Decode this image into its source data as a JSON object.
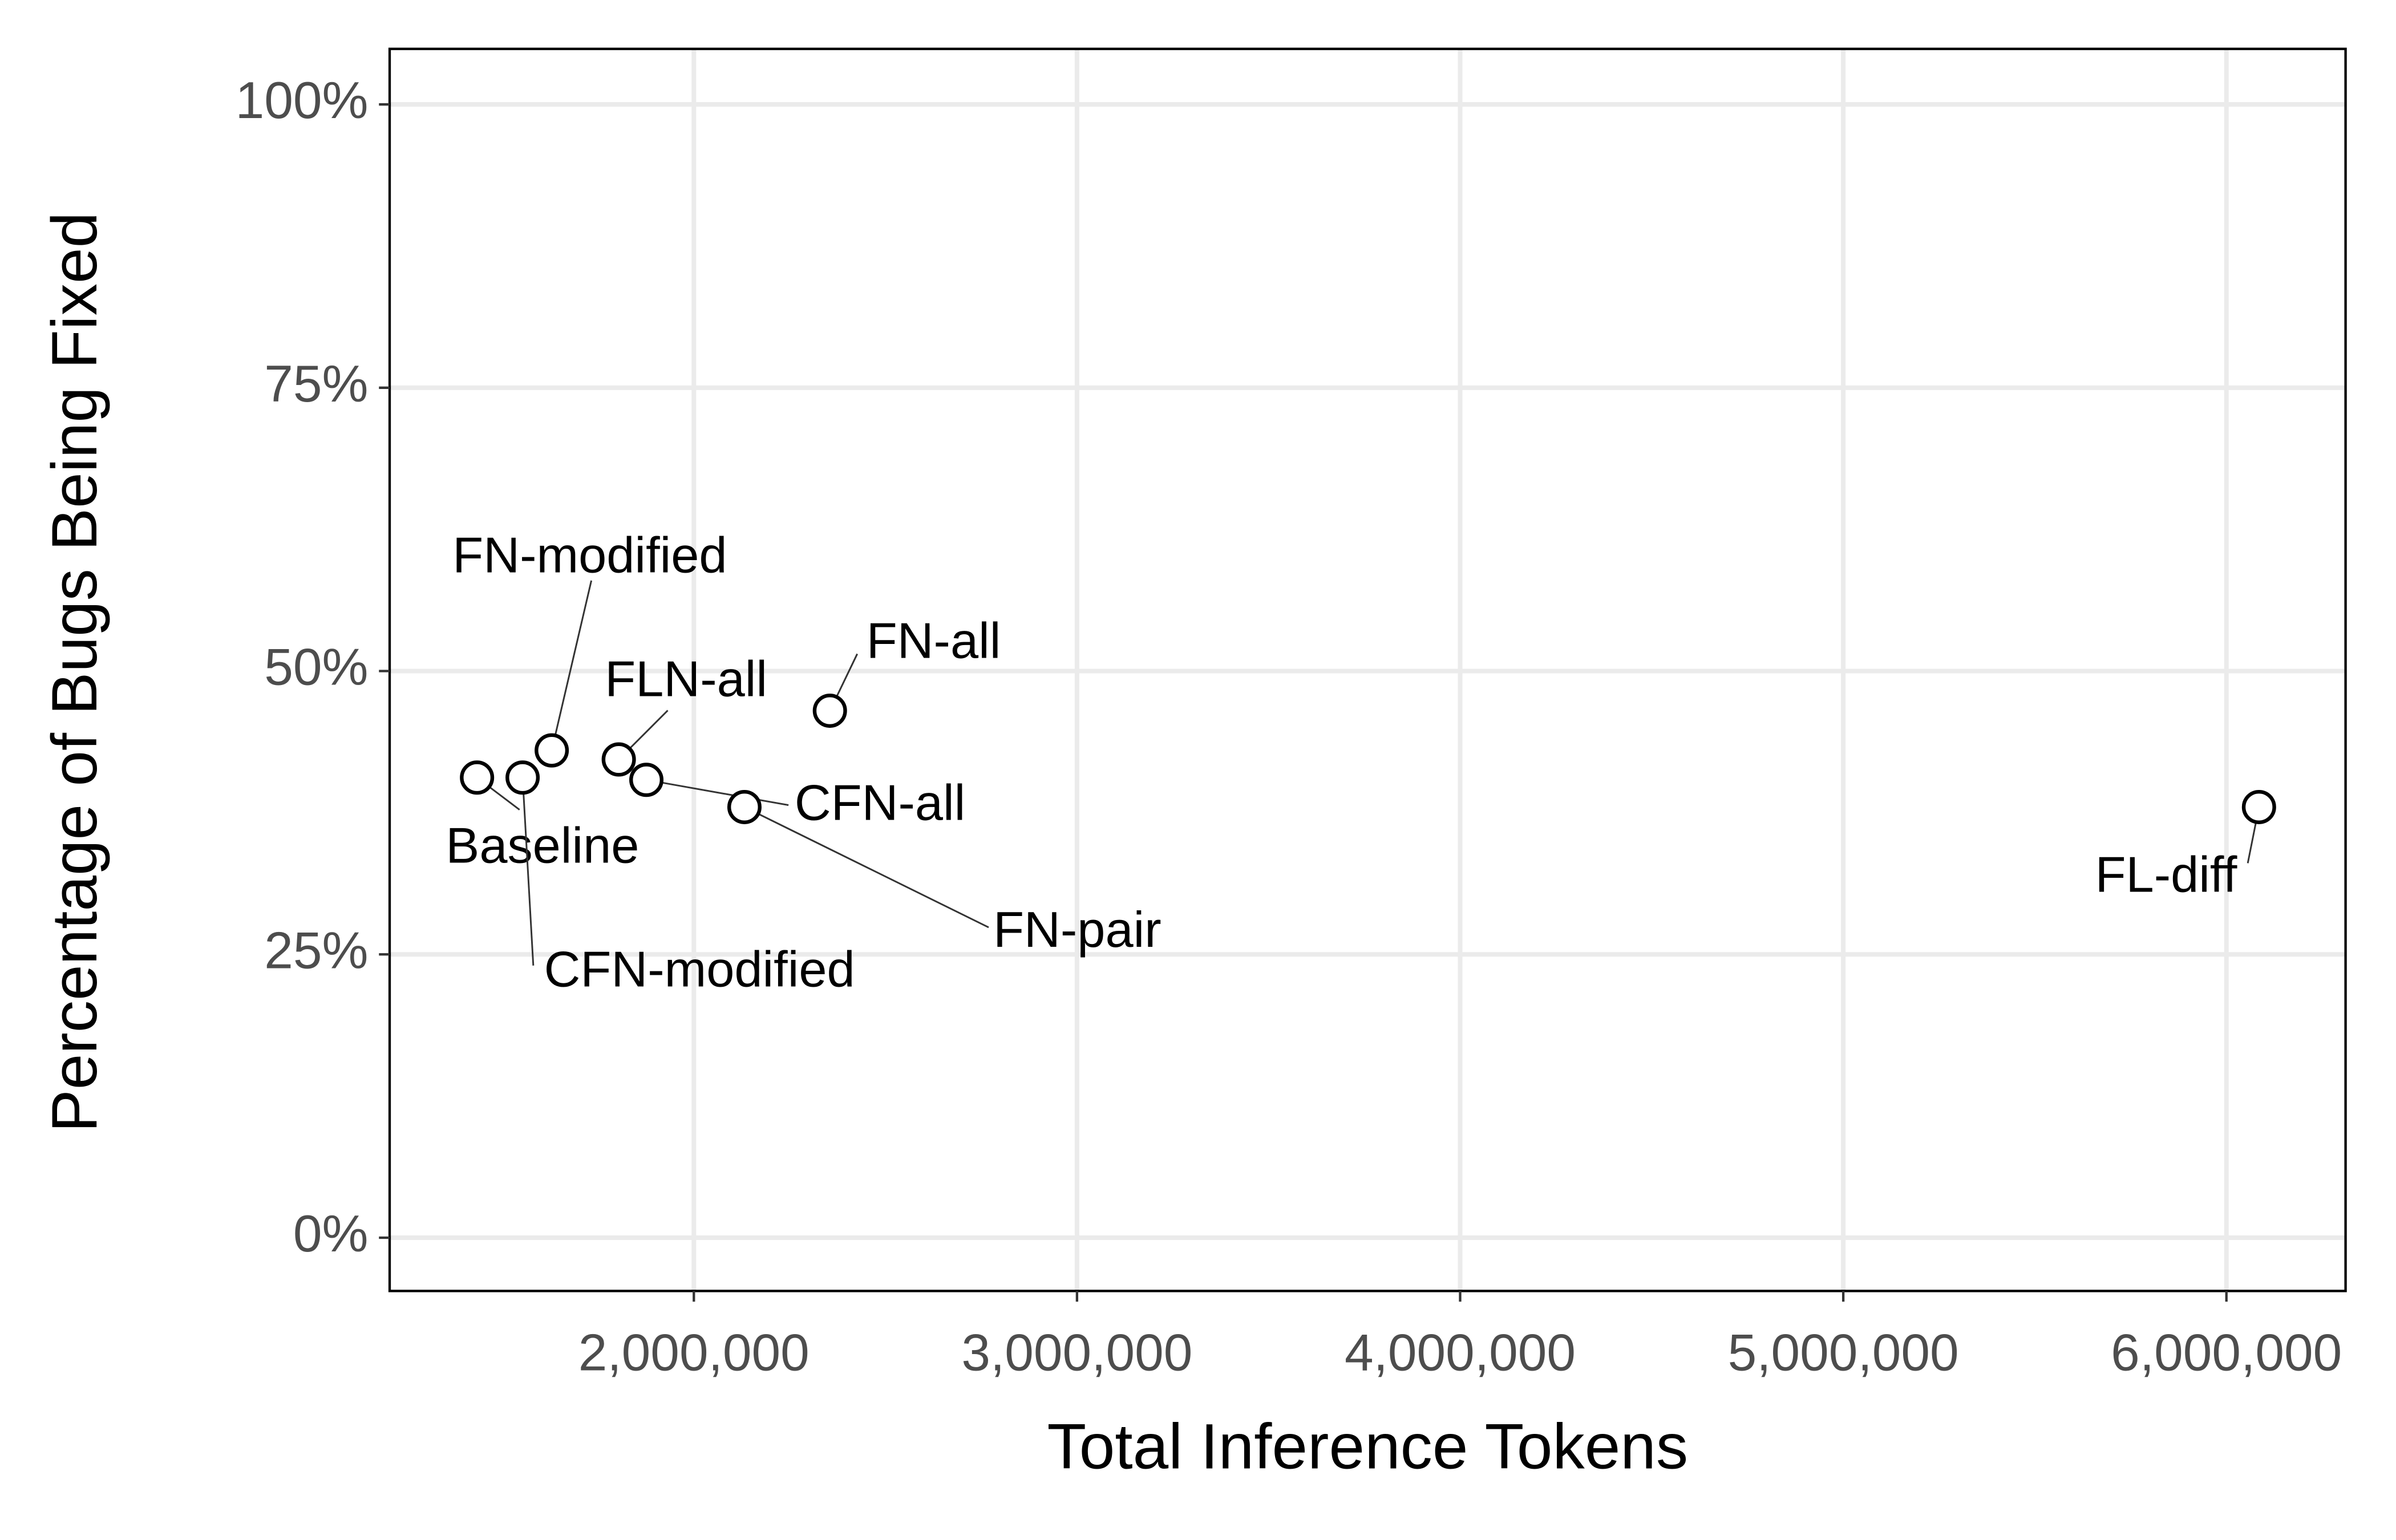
{
  "chart_data": {
    "type": "scatter",
    "x_label": "Total Inference Tokens",
    "y_label": "Percentage of Bugs Being Fixed",
    "point_labels": [
      "Baseline",
      "CFN-modified",
      "FN-modified",
      "FLN-all",
      "CFN-all",
      "FN-pair",
      "FN-all",
      "FL-diff"
    ],
    "x": [
      1434000,
      1553000,
      1629000,
      1804000,
      1876000,
      2132000,
      2355000,
      6085000
    ],
    "values": [
      40.6,
      40.6,
      43.0,
      42.2,
      40.4,
      38.0,
      46.5,
      38.0
    ],
    "xlim": [
      1206000,
      6311000
    ],
    "ylim": [
      -4.7,
      104.9
    ],
    "xticks": [
      {
        "value": 2000000,
        "label": "2,000,000"
      },
      {
        "value": 3000000,
        "label": "3,000,000"
      },
      {
        "value": 4000000,
        "label": "4,000,000"
      },
      {
        "value": 5000000,
        "label": "5,000,000"
      },
      {
        "value": 6000000,
        "label": "6,000,000"
      }
    ],
    "yticks": [
      {
        "value": 0,
        "label": "0%"
      },
      {
        "value": 25,
        "label": "25%"
      },
      {
        "value": 50,
        "label": "50%"
      },
      {
        "value": 75,
        "label": "75%"
      },
      {
        "value": 100,
        "label": "100%"
      }
    ],
    "grid": true,
    "marker_color": "#000000"
  }
}
